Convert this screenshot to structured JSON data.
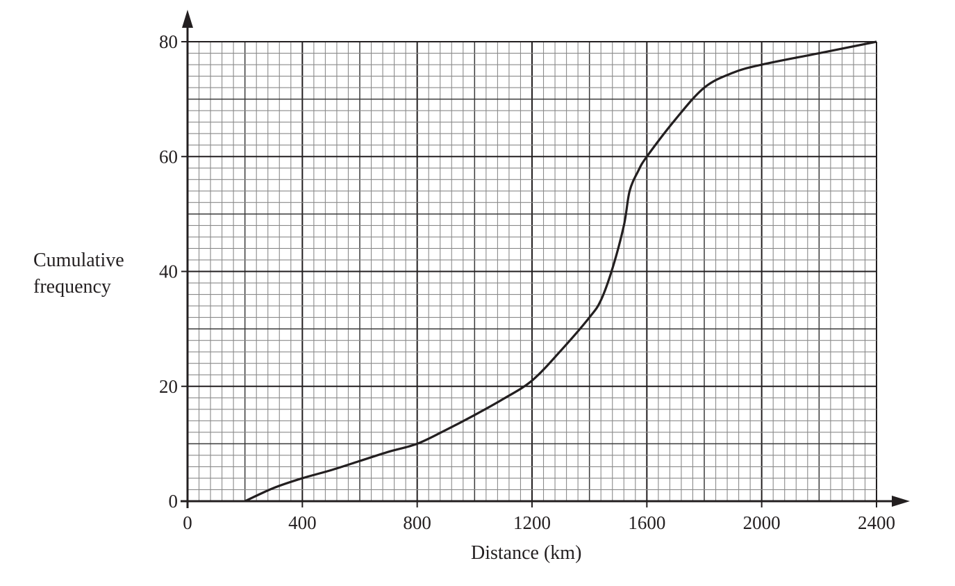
{
  "chart_data": {
    "type": "line",
    "title": "",
    "xlabel": "Distance (km)",
    "ylabel_lines": [
      "Cumulative",
      "frequency"
    ],
    "xlim": [
      0,
      2400
    ],
    "ylim": [
      0,
      80
    ],
    "x_ticks": [
      0,
      400,
      800,
      1200,
      1600,
      2000,
      2400
    ],
    "y_ticks": [
      0,
      20,
      40,
      60,
      80
    ],
    "grid": {
      "major_x": 400,
      "mid_x": 200,
      "minor_x": 40,
      "major_y": 20,
      "mid_y": 10,
      "minor_y": 2
    },
    "series": [
      {
        "name": "cumulative frequency curve",
        "color": "#231f20",
        "points": [
          [
            200,
            0
          ],
          [
            300,
            2.3
          ],
          [
            400,
            4
          ],
          [
            500,
            5.4
          ],
          [
            600,
            7
          ],
          [
            700,
            8.6
          ],
          [
            800,
            10
          ],
          [
            900,
            12.4
          ],
          [
            1000,
            15
          ],
          [
            1100,
            17.8
          ],
          [
            1200,
            21
          ],
          [
            1300,
            26.2
          ],
          [
            1400,
            32
          ],
          [
            1440,
            35
          ],
          [
            1480,
            40.5
          ],
          [
            1520,
            48
          ],
          [
            1540,
            54
          ],
          [
            1570,
            57.5
          ],
          [
            1600,
            60
          ],
          [
            1700,
            66.5
          ],
          [
            1800,
            72
          ],
          [
            1900,
            74.6
          ],
          [
            2000,
            76
          ],
          [
            2200,
            78
          ],
          [
            2400,
            80
          ]
        ]
      }
    ]
  }
}
